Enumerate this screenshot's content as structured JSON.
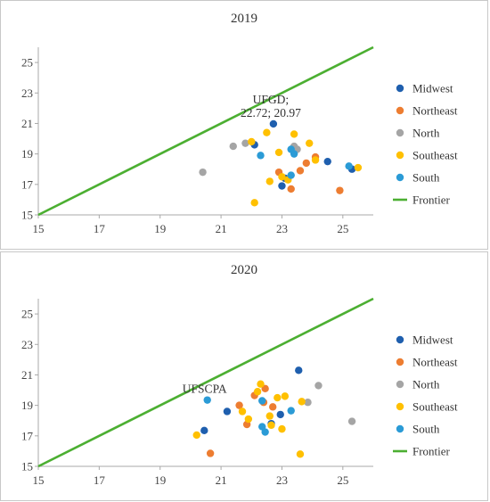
{
  "colors": {
    "Midwest": "#1f5fae",
    "Northeast": "#ed7d31",
    "North": "#a5a5a5",
    "Southeast": "#ffc000",
    "South": "#2b9bd6",
    "Frontier": "#4caf32"
  },
  "chart_data": [
    {
      "type": "scatter",
      "title": "2019",
      "xlim": [
        15,
        26
      ],
      "ylim": [
        15,
        26
      ],
      "xticks": [
        15,
        17,
        19,
        21,
        23,
        25
      ],
      "yticks": [
        15,
        17,
        19,
        21,
        23,
        25
      ],
      "grid": false,
      "legend_position": "right",
      "annotations": [
        {
          "lines": [
            "UFGD;",
            "22.72; 20.97"
          ],
          "x": 22.72,
          "y": 20.97
        }
      ],
      "frontier": {
        "name": "Frontier",
        "x": [
          15,
          26
        ],
        "y": [
          15,
          26
        ]
      },
      "series": [
        {
          "name": "Midwest",
          "points": [
            [
              22.72,
              20.97
            ],
            [
              22.1,
              19.6
            ],
            [
              24.5,
              18.5
            ],
            [
              25.3,
              18.0
            ],
            [
              23.0,
              16.9
            ],
            [
              23.1,
              17.4
            ]
          ]
        },
        {
          "name": "Northeast",
          "points": [
            [
              24.1,
              18.8
            ],
            [
              23.8,
              18.4
            ],
            [
              23.6,
              17.9
            ],
            [
              22.9,
              17.8
            ],
            [
              23.3,
              16.7
            ],
            [
              24.9,
              16.6
            ]
          ]
        },
        {
          "name": "North",
          "points": [
            [
              20.4,
              17.8
            ],
            [
              21.4,
              19.5
            ],
            [
              21.8,
              19.7
            ],
            [
              23.4,
              19.5
            ],
            [
              23.5,
              19.3
            ]
          ]
        },
        {
          "name": "Southeast",
          "points": [
            [
              22.0,
              19.8
            ],
            [
              22.5,
              20.4
            ],
            [
              23.4,
              20.3
            ],
            [
              23.9,
              19.7
            ],
            [
              22.9,
              19.1
            ],
            [
              24.1,
              18.6
            ],
            [
              25.5,
              18.1
            ],
            [
              23.0,
              17.5
            ],
            [
              23.2,
              17.3
            ],
            [
              22.6,
              17.2
            ],
            [
              22.1,
              15.8
            ]
          ]
        },
        {
          "name": "South",
          "points": [
            [
              22.3,
              18.9
            ],
            [
              23.3,
              19.3
            ],
            [
              23.4,
              19.0
            ],
            [
              23.3,
              17.6
            ],
            [
              25.2,
              18.2
            ]
          ]
        }
      ]
    },
    {
      "type": "scatter",
      "title": "2020",
      "xlim": [
        15,
        26
      ],
      "ylim": [
        15,
        26
      ],
      "xticks": [
        15,
        17,
        19,
        21,
        23,
        25
      ],
      "yticks": [
        15,
        17,
        19,
        21,
        23,
        25
      ],
      "grid": false,
      "legend_position": "right",
      "annotations": [
        {
          "lines": [
            "UFSCPA"
          ],
          "x": 20.55,
          "y": 19.35
        }
      ],
      "frontier": {
        "name": "Frontier",
        "x": [
          15,
          26
        ],
        "y": [
          15,
          26
        ]
      },
      "series": [
        {
          "name": "Midwest",
          "points": [
            [
              23.55,
              21.3
            ],
            [
              21.2,
              18.6
            ],
            [
              20.45,
              17.35
            ],
            [
              22.95,
              18.4
            ],
            [
              22.65,
              17.8
            ]
          ]
        },
        {
          "name": "Northeast",
          "points": [
            [
              22.45,
              20.1
            ],
            [
              22.1,
              19.65
            ],
            [
              21.6,
              19.0
            ],
            [
              21.85,
              17.75
            ],
            [
              22.7,
              18.9
            ],
            [
              22.4,
              19.2
            ],
            [
              20.65,
              15.85
            ]
          ]
        },
        {
          "name": "North",
          "points": [
            [
              24.2,
              20.3
            ],
            [
              23.85,
              19.2
            ],
            [
              25.3,
              17.95
            ]
          ]
        },
        {
          "name": "Southeast",
          "points": [
            [
              22.3,
              20.4
            ],
            [
              22.2,
              19.9
            ],
            [
              22.85,
              19.5
            ],
            [
              23.1,
              19.6
            ],
            [
              23.65,
              19.25
            ],
            [
              21.7,
              18.6
            ],
            [
              21.9,
              18.1
            ],
            [
              22.6,
              18.3
            ],
            [
              22.65,
              17.7
            ],
            [
              23.0,
              17.45
            ],
            [
              20.2,
              17.05
            ],
            [
              23.6,
              15.8
            ]
          ]
        },
        {
          "name": "South",
          "points": [
            [
              20.55,
              19.35
            ],
            [
              22.35,
              19.3
            ],
            [
              23.3,
              18.65
            ],
            [
              22.35,
              17.6
            ],
            [
              22.45,
              17.25
            ]
          ]
        }
      ]
    }
  ]
}
